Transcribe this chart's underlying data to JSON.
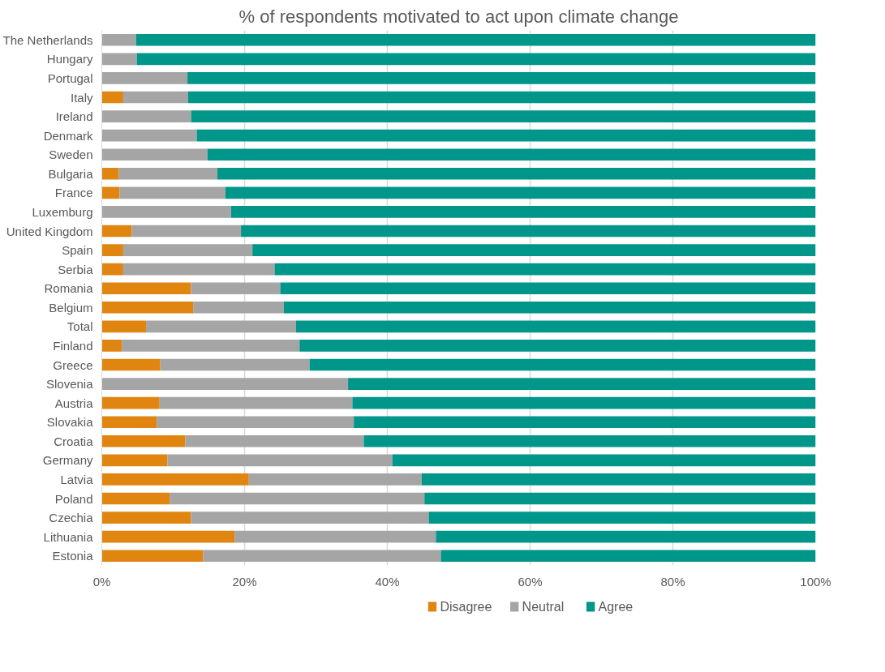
{
  "chart_data": {
    "type": "bar",
    "orientation": "horizontal",
    "stacked": true,
    "title": "% of respondents motivated to act upon climate change",
    "categories": [
      "The Netherlands",
      "Hungary",
      "Portugal",
      "Italy",
      "Ireland",
      "Denmark",
      "Sweden",
      "Bulgaria",
      "France",
      "Luxemburg",
      "United Kingdom",
      "Spain",
      "Serbia",
      "Romania",
      "Belgium",
      "Total",
      "Finland",
      "Greece",
      "Slovenia",
      "Austria",
      "Slovakia",
      "Croatia",
      "Germany",
      "Latvia",
      "Poland",
      "Czechia",
      "Lithuania",
      "Estonia"
    ],
    "series": [
      {
        "name": "Disagree",
        "color": "#df8510",
        "values": [
          0,
          0,
          0,
          3.0,
          0,
          0,
          0,
          2.4,
          2.5,
          0,
          4.2,
          3.0,
          3.0,
          12.5,
          12.8,
          6.2,
          2.8,
          8.2,
          0,
          8.1,
          7.7,
          11.7,
          9.2,
          20.6,
          9.5,
          12.5,
          18.6,
          14.2
        ]
      },
      {
        "name": "Neutral",
        "color": "#a5a5a5",
        "values": [
          4.8,
          4.9,
          12.0,
          9.1,
          12.5,
          13.3,
          14.8,
          13.8,
          14.8,
          18.1,
          15.3,
          18.1,
          21.2,
          12.5,
          12.7,
          21.0,
          24.9,
          20.9,
          34.5,
          27.0,
          27.6,
          25.0,
          31.5,
          24.2,
          35.7,
          33.3,
          28.2,
          33.3
        ]
      },
      {
        "name": "Agree",
        "color": "#00968a",
        "values": [
          95.2,
          95.1,
          88.0,
          87.9,
          87.5,
          86.7,
          85.2,
          83.8,
          82.7,
          81.9,
          80.5,
          78.9,
          75.8,
          75.0,
          74.5,
          72.8,
          72.3,
          70.9,
          65.5,
          64.9,
          64.7,
          63.3,
          59.3,
          55.2,
          54.8,
          54.2,
          53.2,
          52.5
        ]
      }
    ],
    "xlim": [
      0,
      100
    ],
    "xticks": [
      {
        "value": 0,
        "label": "0%"
      },
      {
        "value": 20,
        "label": "20%"
      },
      {
        "value": 40,
        "label": "40%"
      },
      {
        "value": 60,
        "label": "60%"
      },
      {
        "value": 80,
        "label": "80%"
      },
      {
        "value": 100,
        "label": "100%"
      }
    ],
    "grid": "x",
    "legend": "bottom"
  }
}
